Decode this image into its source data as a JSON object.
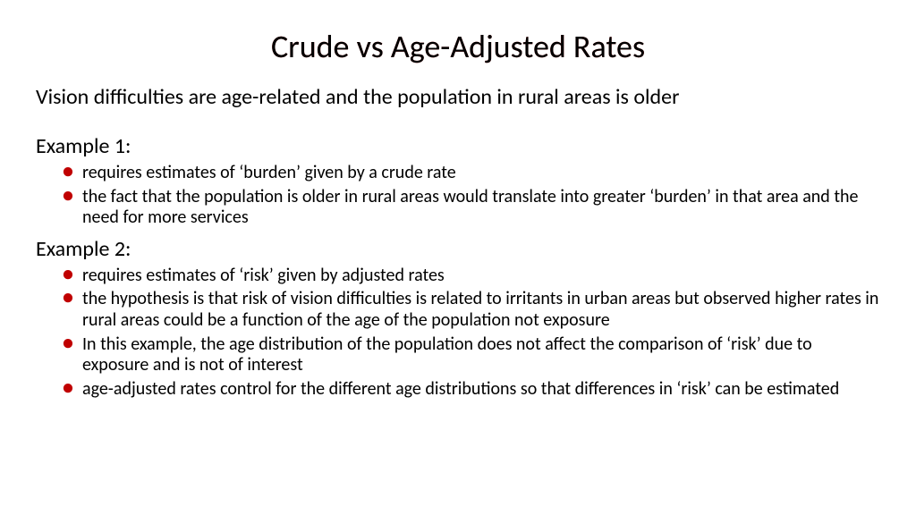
{
  "title": "Crude vs Age-Adjusted Rates",
  "intro": "Vision difficulties are age-related and the population in rural areas is older",
  "example1": {
    "heading": "Example 1:",
    "bullets": [
      "requires estimates of ‘burden’ given by a crude rate",
      "the fact that the population is older in rural areas would translate into greater ‘burden’ in that area and the need for more services"
    ]
  },
  "example2": {
    "heading": "Example 2:",
    "bullets": [
      "requires estimates of ‘risk’ given by adjusted rates",
      "the hypothesis is that risk of vision difficulties is related to irritants in urban areas but observed higher rates in rural areas could be a function of the age of the population not exposure",
      "In this example, the age distribution of the population does not affect the comparison of ‘risk’ due to exposure and is not of interest",
      "age-adjusted rates control for the different age distributions so that differences in ‘risk’ can be estimated"
    ]
  },
  "colors": {
    "bullet": "#c00000",
    "title_shadow": "#c00000",
    "text": "#000000",
    "background": "#ffffff"
  }
}
